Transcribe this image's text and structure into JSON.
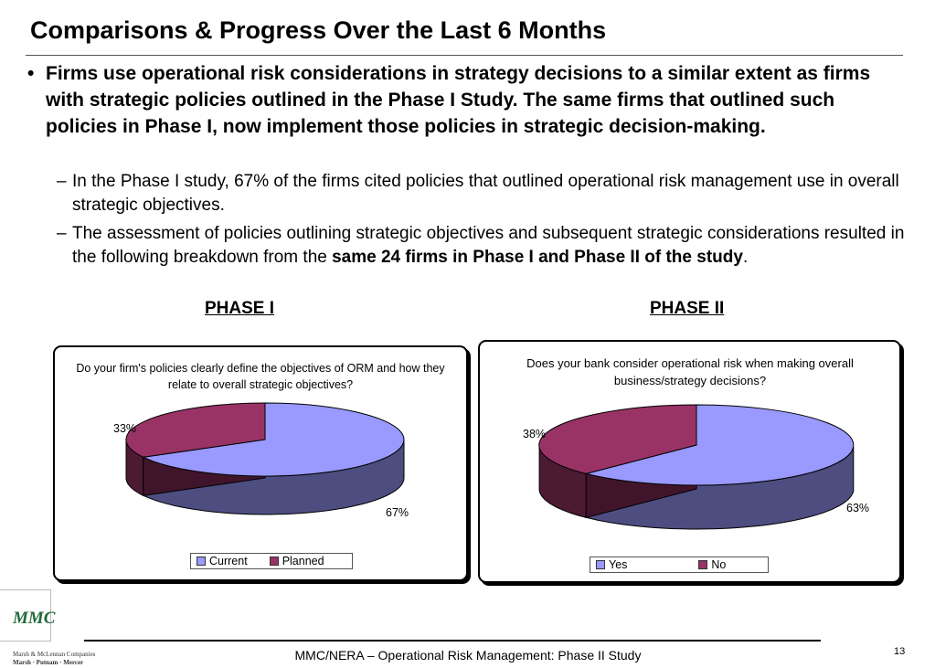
{
  "slide": {
    "title": "Comparisons & Progress Over the Last 6 Months",
    "bullet_main": "Firms use operational risk considerations in strategy decisions to a similar extent as firms with strategic policies outlined in the Phase I Study.  The same firms that outlined such policies in Phase I, now implement those policies in strategic decision-making.",
    "sub1": "In the Phase I study, 67% of the firms cited policies that outlined operational risk management use in overall strategic objectives.",
    "sub2_pre": "The assessment of policies outlining strategic objectives and subsequent strategic considerations resulted in the following breakdown from the ",
    "sub2_bold": "same 24 firms in Phase I and Phase II of the study",
    "sub2_post": ".",
    "phase1_heading": "PHASE I",
    "phase2_heading": "PHASE II",
    "bullet_glyph": "•",
    "dash_glyph": "–"
  },
  "chart_data": [
    {
      "type": "pie",
      "title": "Do your firm's policies clearly define the objectives of ORM and how they relate to overall strategic objectives?",
      "categories": [
        "Current",
        "Planned"
      ],
      "values": [
        67,
        33
      ],
      "labels": [
        "67%",
        "33%"
      ],
      "colors": [
        "#9999ff",
        "#993366"
      ],
      "legend_position": "bottom"
    },
    {
      "type": "pie",
      "title": "Does your bank consider operational risk when making overall business/strategy decisions?",
      "categories": [
        "Yes",
        "No"
      ],
      "values": [
        63,
        38
      ],
      "labels": [
        "63%",
        "38%"
      ],
      "colors": [
        "#9999ff",
        "#993366"
      ],
      "legend_position": "bottom"
    }
  ],
  "footer": {
    "logo_text": "MMC",
    "logo_sub1": "Marsh & McLennan Companies",
    "logo_sub2": "Marsh · Putnam · Mercer",
    "text": "MMC/NERA – Operational Risk Management: Phase II Study",
    "page_number": "13"
  }
}
